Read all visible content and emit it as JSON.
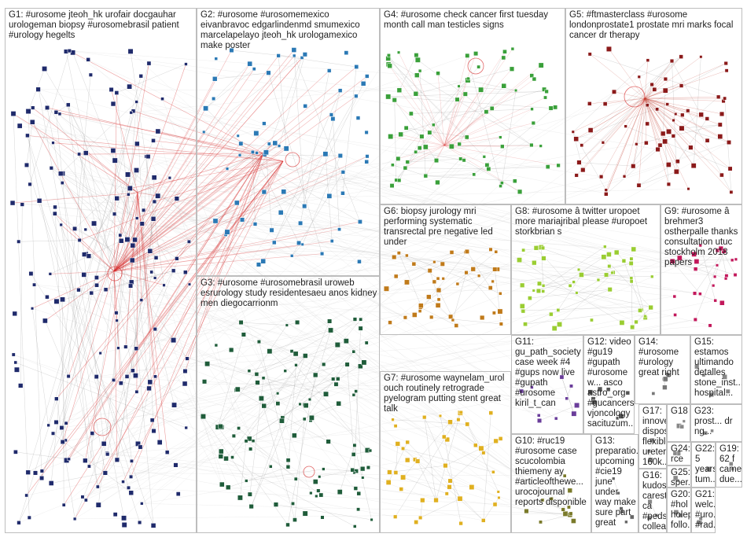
{
  "groups": [
    {
      "id": "G1",
      "label": "G1: #urosome jteoh_hk urofair docgauhar urologeman biopsy #urosomebrasil patient #urology hegelts",
      "color": "#1f2a6b"
    },
    {
      "id": "G2",
      "label": "G2: #urosome #urosomemexico eivanbravoc edgarlindenmd smumexico marcelapelayo jteoh_hk urologamexico make poster",
      "color": "#2b79b5"
    },
    {
      "id": "G3",
      "label": "G3: #urosome #urosomebrasil uroweb esrurology study residentesaeu anos kidney men diegocarrionm",
      "color": "#1f5c3a"
    },
    {
      "id": "G4",
      "label": "G4: #urosome check cancer first tuesday month call man testicles signs",
      "color": "#3aa03a"
    },
    {
      "id": "G5",
      "label": "G5: #ftmasterclass #urosome londonprostate1 prostate mri marks focal cancer dr therapy",
      "color": "#8b1a1a"
    },
    {
      "id": "G6",
      "label": "G6: biopsy jurology mri performing systematic transrectal pre negative led under",
      "color": "#c07a1a"
    },
    {
      "id": "G7",
      "label": "G7: #urosome waynelam_urol ouch routinely retrograde pyelogram putting stent great talk",
      "color": "#e0b020"
    },
    {
      "id": "G8",
      "label": "G8: #urosome â twitter uropoet more mariajribal please #uropoet storkbrian s",
      "color": "#9acd32"
    },
    {
      "id": "G9",
      "label": "G9: #urosome â brehmer3 ostherpalle thanks consultation utuc stockholm 2018 papers",
      "color": "#c2185b"
    },
    {
      "id": "G10",
      "label": "G10: #ruc19 #urosome case scucolombia thiemeny ay #articleofthewe... urocojournal reports disponible",
      "color": "#7a7a2a"
    },
    {
      "id": "G11",
      "label": "G11: gu_path_society case week #4 #gups now live #gupath #urosome kiril_t_can",
      "color": "#6a3d9a"
    },
    {
      "id": "G12",
      "label": "G12: video #gu19 #gupath #urosome w... asco astro_org #gucancers vjoncology sacituzum...",
      "color": "#555555"
    },
    {
      "id": "G13",
      "label": "G13: preparatio... upcoming #cie19 june under way make sure part great",
      "color": "#666666"
    },
    {
      "id": "G14",
      "label": "G14: #urosome #urology great right",
      "color": "#777777"
    },
    {
      "id": "G15",
      "label": "G15: estamos ultimando detalles stone_inst... hospital...",
      "color": "#888888"
    },
    {
      "id": "G16",
      "label": "G16: kudos carestf... ca #peds... collea...",
      "color": "#888888"
    },
    {
      "id": "G17",
      "label": "G17: innove... dispos... flexible ureter 160k...",
      "color": "#888888"
    },
    {
      "id": "G18",
      "label": "G18",
      "color": "#888888"
    },
    {
      "id": "G19",
      "label": "G19: 62 f came due...",
      "color": "#888888"
    },
    {
      "id": "G20",
      "label": "G20: #hol holep follo...",
      "color": "#888888"
    },
    {
      "id": "G21",
      "label": "G21: welc... #uro... #rad...",
      "color": "#888888"
    },
    {
      "id": "G22",
      "label": "G22: 5 years tum...",
      "color": "#888888"
    },
    {
      "id": "G23",
      "label": "G23: prost... dr ng...",
      "color": "#888888"
    },
    {
      "id": "G24",
      "label": "G24: rce #uro... bac...",
      "color": "#888888"
    },
    {
      "id": "G25",
      "label": "G25: sper... job #uro...",
      "color": "#888888"
    }
  ]
}
